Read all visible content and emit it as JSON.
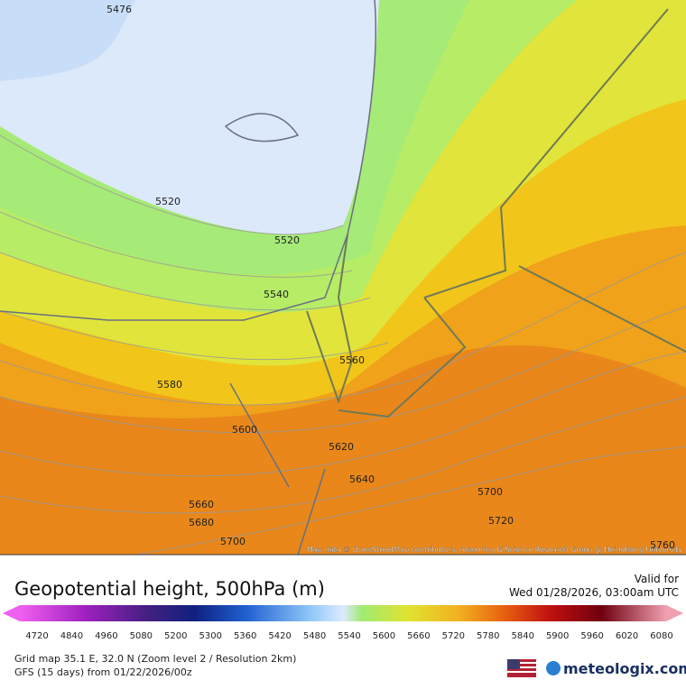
{
  "map": {
    "contour_labels": [
      5476,
      5520,
      5520,
      5540,
      5560,
      5580,
      5600,
      5620,
      5640,
      5660,
      5680,
      5700,
      5700,
      5720,
      5760
    ],
    "attribution": "Map data © OpenStreetMap contributors, rendering GIScience Research Group @ Heidelberg University"
  },
  "header": {
    "title": "Geopotential height, 500hPa (m)",
    "valid_label": "Valid for",
    "valid_time": "Wed 01/28/2026, 03:00am UTC"
  },
  "colorbar": {
    "labels": [
      4720,
      4840,
      4960,
      5080,
      5200,
      5300,
      5360,
      5420,
      5480,
      5540,
      5600,
      5660,
      5720,
      5780,
      5840,
      5900,
      5960,
      6020,
      6080
    ]
  },
  "footer": {
    "grid": "Grid map 35.1 E, 32.0 N (Zoom level 2 / Resolution 2km)",
    "model": "GFS (15 days) from 01/22/2026/00z",
    "brand": "meteologix.com"
  }
}
